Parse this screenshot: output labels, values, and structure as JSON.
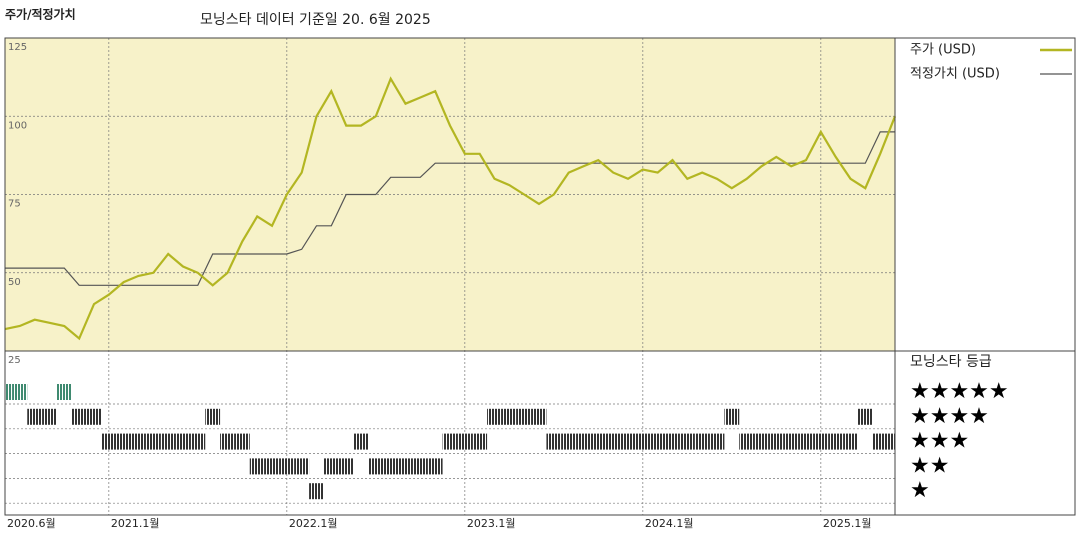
{
  "chart_data": {
    "type": "line",
    "title": "주가/적정가치",
    "subtitle": "모닝스타 데이터 기준일 20. 6월 2025",
    "x": [
      "2020-06",
      "2020-07",
      "2020-08",
      "2020-09",
      "2020-10",
      "2020-11",
      "2020-12",
      "2021-01",
      "2021-02",
      "2021-03",
      "2021-04",
      "2021-05",
      "2021-06",
      "2021-07",
      "2021-08",
      "2021-09",
      "2021-10",
      "2021-11",
      "2021-12",
      "2022-01",
      "2022-02",
      "2022-03",
      "2022-04",
      "2022-05",
      "2022-06",
      "2022-07",
      "2022-08",
      "2022-09",
      "2022-10",
      "2022-11",
      "2022-12",
      "2023-01",
      "2023-02",
      "2023-03",
      "2023-04",
      "2023-05",
      "2023-06",
      "2023-07",
      "2023-08",
      "2023-09",
      "2023-10",
      "2023-11",
      "2023-12",
      "2024-01",
      "2024-02",
      "2024-03",
      "2024-04",
      "2024-05",
      "2024-06",
      "2024-07",
      "2024-08",
      "2024-09",
      "2024-10",
      "2024-11",
      "2024-12",
      "2025-01",
      "2025-02",
      "2025-03",
      "2025-04",
      "2025-05",
      "2025-06"
    ],
    "series": [
      {
        "name": "주가 (USD)",
        "color": "#b3b622",
        "values": [
          32,
          33,
          35,
          34,
          33,
          29,
          40,
          43,
          47,
          49,
          50,
          56,
          52,
          50,
          46,
          50,
          60,
          68,
          65,
          75,
          82,
          100,
          108,
          97,
          97,
          100,
          112,
          104,
          106,
          108,
          97,
          88,
          88,
          80,
          78,
          75,
          72,
          75,
          82,
          84,
          86,
          82,
          80,
          83,
          82,
          86,
          80,
          82,
          80,
          77,
          80,
          84,
          87,
          84,
          86,
          95,
          87,
          80,
          77,
          88,
          100
        ]
      },
      {
        "name": "적정가치 (USD)",
        "color": "#555555",
        "values": [
          51.5,
          51.5,
          51.5,
          51.5,
          51.5,
          46,
          46,
          46,
          46,
          46,
          46,
          46,
          46,
          46,
          56,
          56,
          56,
          56,
          56,
          56,
          57.5,
          65,
          65,
          75,
          75,
          75,
          80.5,
          80.5,
          80.5,
          85,
          85,
          85,
          85,
          85,
          85,
          85,
          85,
          85,
          85,
          85,
          85,
          85,
          85,
          85,
          85,
          85,
          85,
          85,
          85,
          85,
          85,
          85,
          85,
          85,
          85,
          85,
          85,
          85,
          85,
          95,
          95
        ]
      }
    ],
    "ylim": [
      25,
      125
    ],
    "yticks": [
      125,
      100,
      75,
      50,
      25
    ],
    "xticks": [
      {
        "value": "2020-06",
        "label": "2020.6월"
      },
      {
        "value": "2021-01",
        "label": "2021.1월"
      },
      {
        "value": "2022-01",
        "label": "2022.1월"
      },
      {
        "value": "2023-01",
        "label": "2023.1월"
      },
      {
        "value": "2024-01",
        "label": "2024.1월"
      },
      {
        "value": "2025-01",
        "label": "2025.1월"
      }
    ],
    "grid": true,
    "background": "#f7f2c9",
    "ratings": {
      "name": "모닝스타 등급",
      "levels": [
        5,
        4,
        3,
        2,
        1
      ],
      "labels": [
        "★★★★★",
        "★★★★",
        "★★★",
        "★★",
        "★"
      ],
      "top_color": "#3f8a70",
      "color": "#333333",
      "values": [
        5,
        5,
        4,
        4,
        5,
        4,
        4,
        3,
        3,
        3,
        3,
        3,
        3,
        3,
        4,
        3,
        3,
        2,
        2,
        2,
        2,
        1,
        2,
        2,
        3,
        2,
        2,
        2,
        2,
        2,
        3,
        3,
        3,
        4,
        4,
        4,
        4,
        3,
        3,
        3,
        3,
        3,
        3,
        3,
        3,
        3,
        3,
        3,
        3,
        4,
        3,
        3,
        3,
        3,
        3,
        3,
        3,
        3,
        4,
        3,
        3
      ]
    }
  }
}
